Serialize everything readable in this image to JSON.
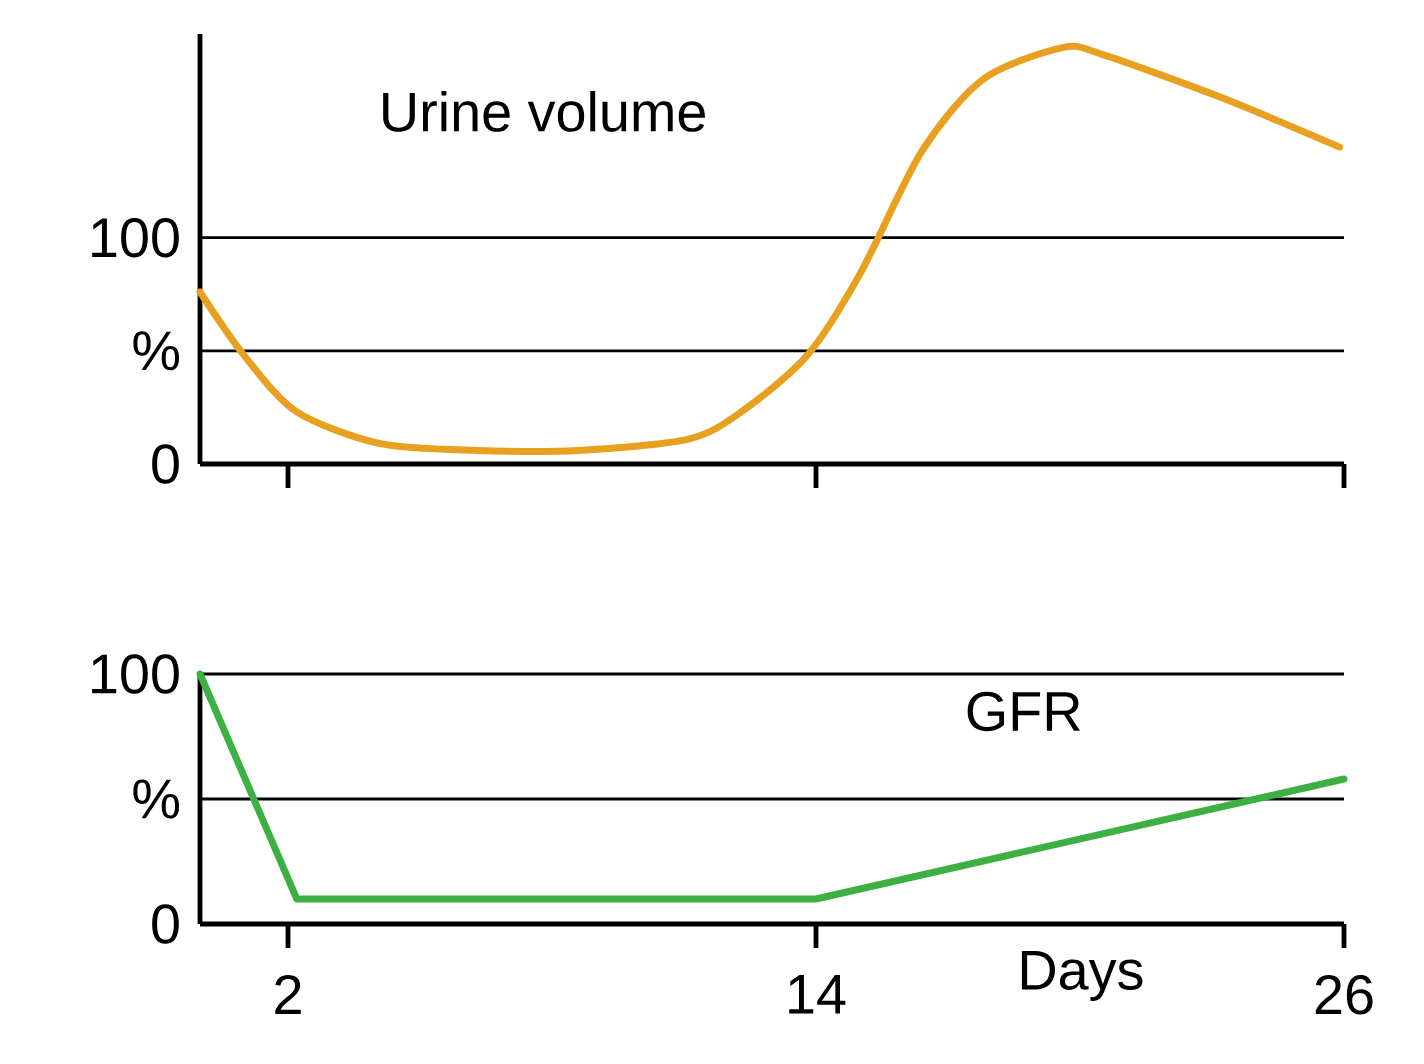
{
  "chart_data": [
    {
      "type": "line",
      "x": [
        0,
        1.0,
        2.2,
        4.1,
        6.3,
        8.6,
        11.1,
        12.3,
        13.8,
        15,
        16.4,
        17.8,
        19.6,
        20.5,
        23.2,
        25.9
      ],
      "series": [
        {
          "name": "Urine volume",
          "color": "#e8a020",
          "values": [
            76,
            48,
            23,
            9,
            6,
            6,
            11,
            23,
            48,
            84,
            138,
            170,
            184,
            181,
            162,
            140
          ]
        }
      ],
      "xlim": [
        0,
        26
      ],
      "xticks": [
        {
          "value": 2,
          "label": null
        },
        {
          "value": 14,
          "label": null
        },
        {
          "value": 26,
          "label": null
        }
      ],
      "ylim": [
        0,
        190
      ],
      "yticks": [
        0,
        {
          "value": 50,
          "label": "%"
        },
        100
      ],
      "grid": "y",
      "tick_labels": "y"
    },
    {
      "type": "line",
      "x": [
        0,
        2.2,
        14,
        26
      ],
      "series": [
        {
          "name": "GFR",
          "color": "#3cb043",
          "values": [
            100,
            10,
            10,
            58
          ]
        }
      ],
      "xlim": [
        0,
        26
      ],
      "xticks": [
        2,
        14,
        26
      ],
      "xlabel": "Days",
      "ylim": [
        0,
        100
      ],
      "yticks": [
        0,
        {
          "value": 50,
          "label": "%"
        },
        100
      ],
      "grid": "y"
    }
  ]
}
